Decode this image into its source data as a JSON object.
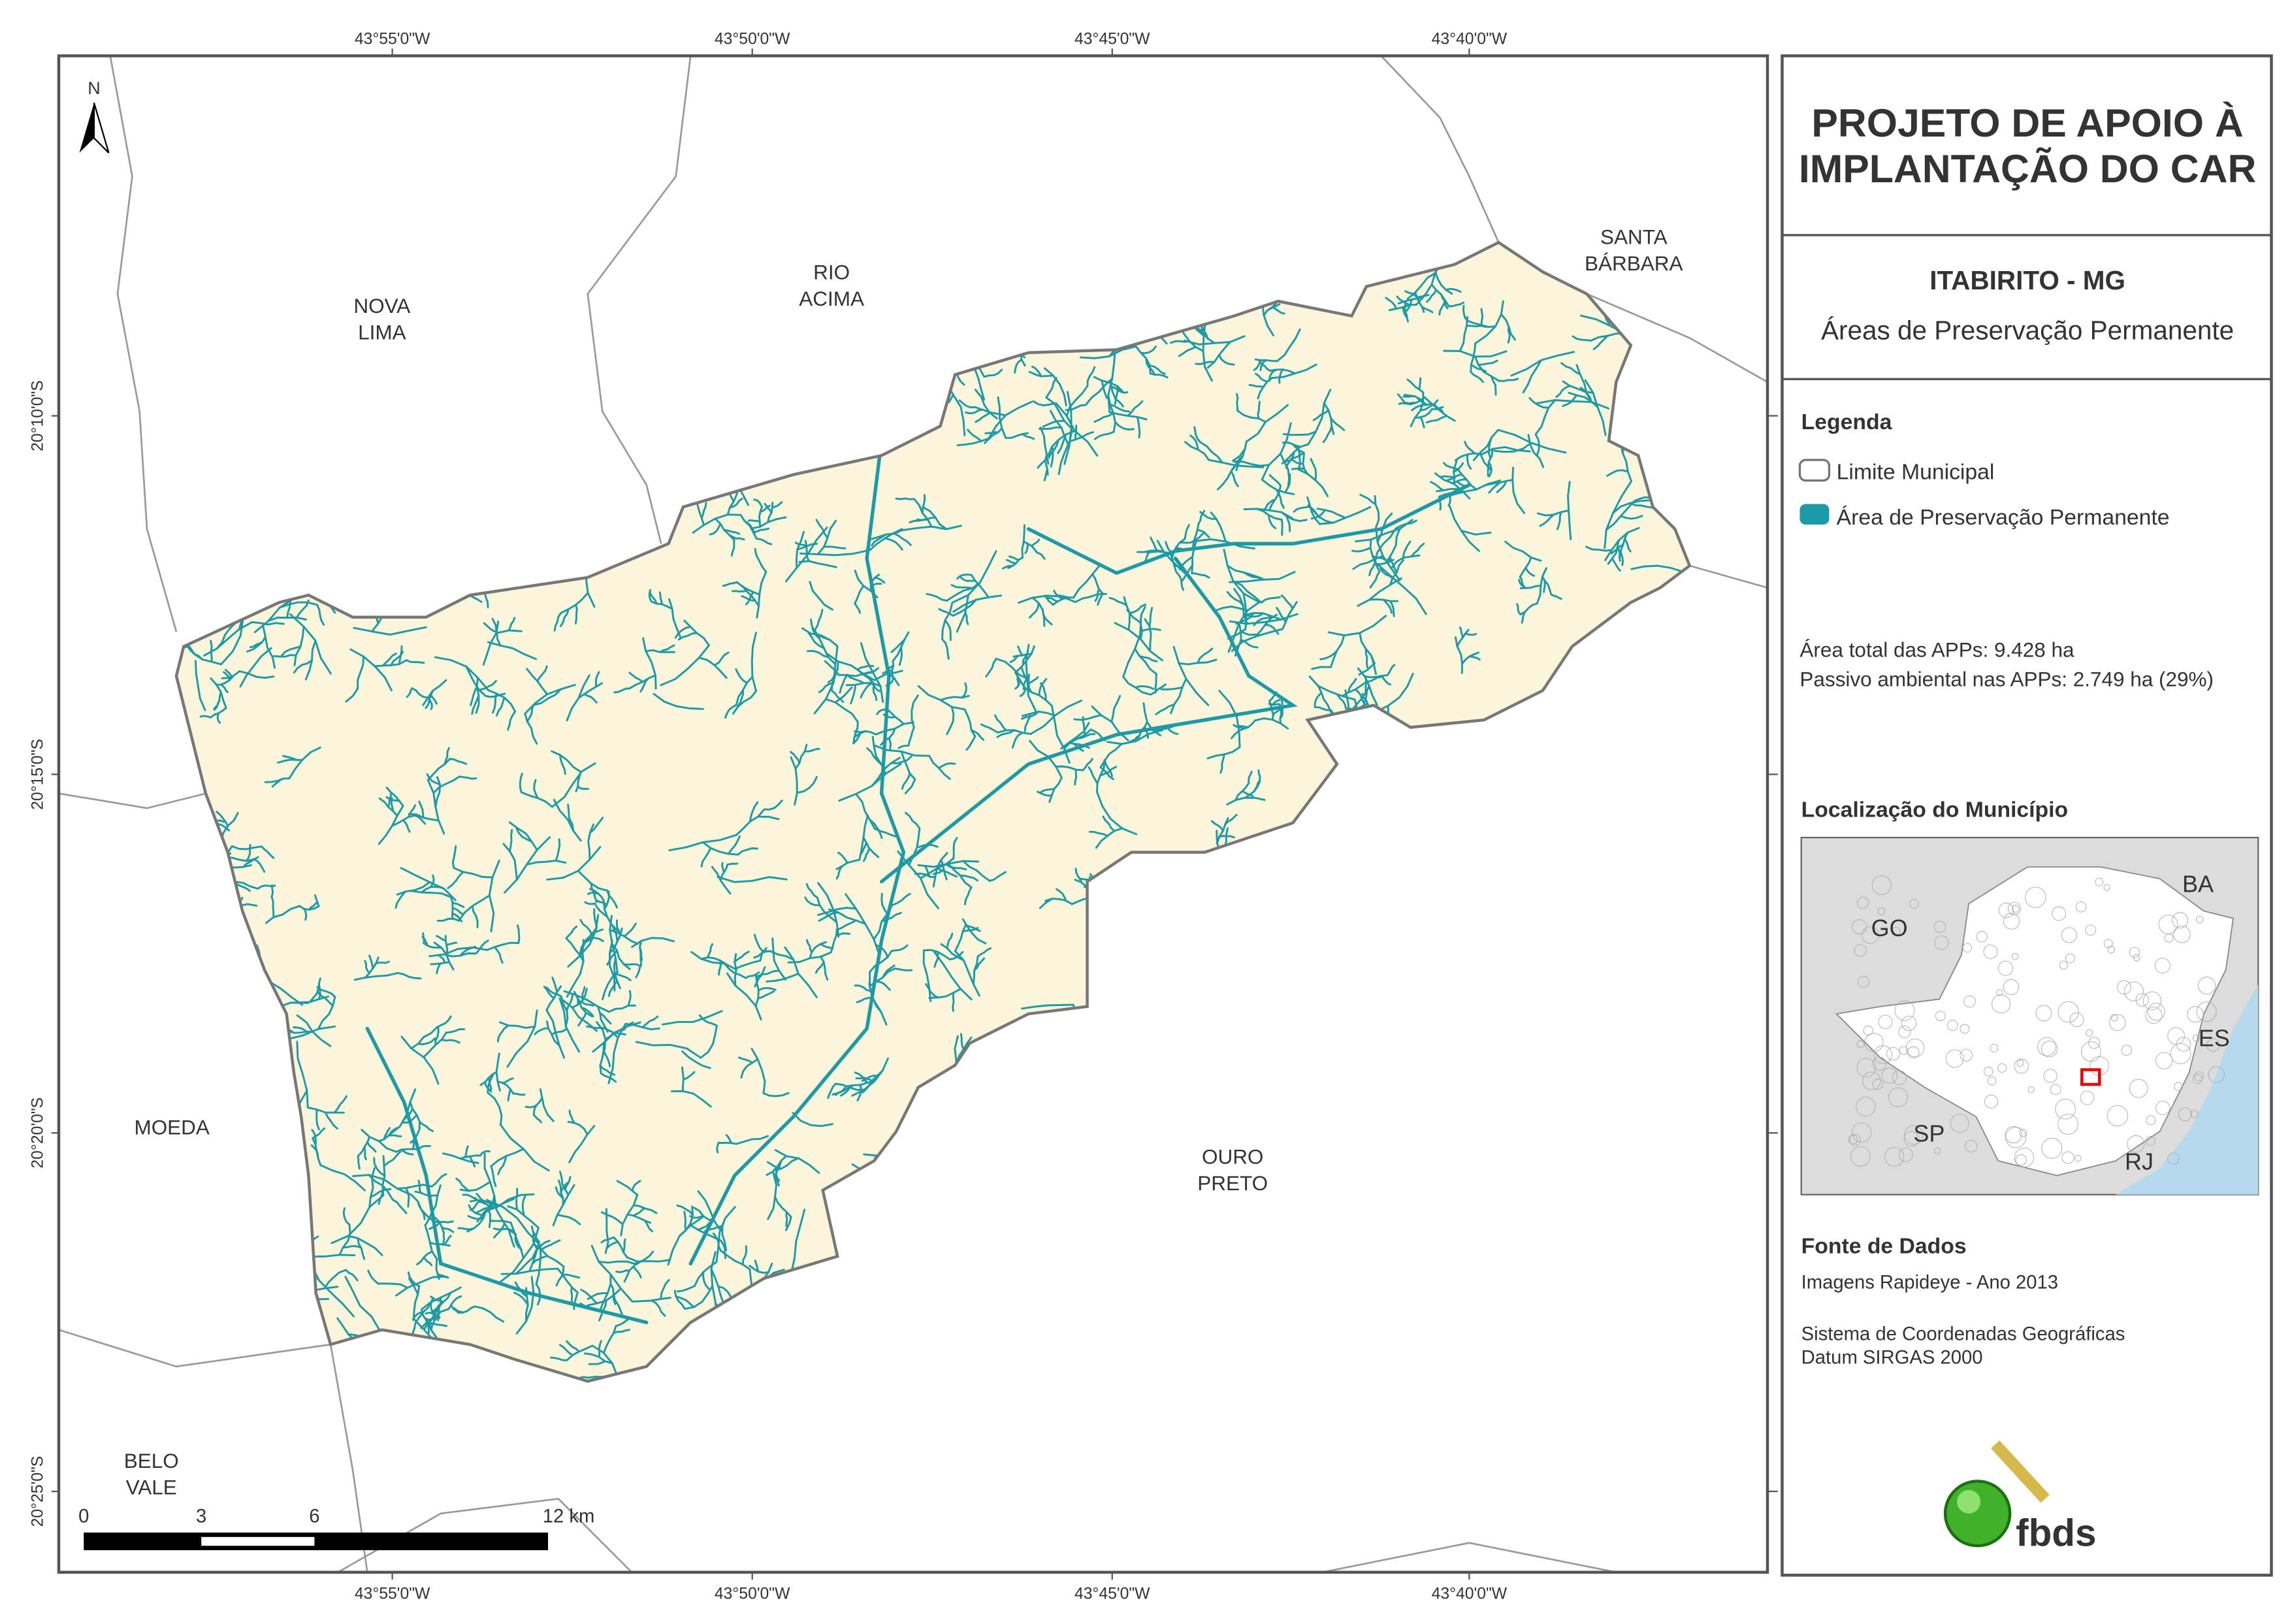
{
  "map": {
    "north": "N",
    "x_labels_top": [
      "43°55'0\"W",
      "43°50'0\"W",
      "43°45'0\"W",
      "43°40'0\"W"
    ],
    "x_labels_bottom": [
      "43°55'0\"W",
      "43°50'0\"W",
      "43°45'0\"W",
      "43°40'0\"W"
    ],
    "y_labels": [
      "20°10'0\"S",
      "20°15'0\"S",
      "20°20'0\"S",
      "20°25'0\"S"
    ],
    "places": [
      {
        "lines": [
          "NOVA",
          "LIMA"
        ]
      },
      {
        "lines": [
          "RIO",
          "ACIMA"
        ]
      },
      {
        "lines": [
          "SANTA",
          "BÁRBARA"
        ]
      },
      {
        "lines": [
          "MOEDA"
        ]
      },
      {
        "lines": [
          "OURO",
          "PRETO"
        ]
      },
      {
        "lines": [
          "BELO",
          "VALE"
        ]
      }
    ],
    "scale_labels": [
      "0",
      "3",
      "6",
      "12 km"
    ]
  },
  "panel": {
    "title": [
      "PROJETO DE APOIO À",
      "IMPLANTAÇÃO DO CAR"
    ],
    "subtitle": "ITABIRITO - MG",
    "theme": "Áreas de Preservação Permanente",
    "legend": {
      "title": "Legenda",
      "items": [
        "Limite Municipal",
        "Área de Preservação Permanente"
      ]
    },
    "stats": [
      "Área total das APPs: 9.428 ha",
      "Passivo ambiental nas APPs: 2.749 ha (29%)"
    ],
    "location": {
      "title": "Localização do Município",
      "states": [
        "GO",
        "BA",
        "ES",
        "SP",
        "RJ"
      ]
    },
    "sources": {
      "title": "Fonte de Dados",
      "lines": [
        "Imagens Rapideye - Ano 2013",
        "Sistema de Coordenadas Geográficas",
        "Datum SIRGAS 2000"
      ]
    },
    "logo": "fbds"
  }
}
